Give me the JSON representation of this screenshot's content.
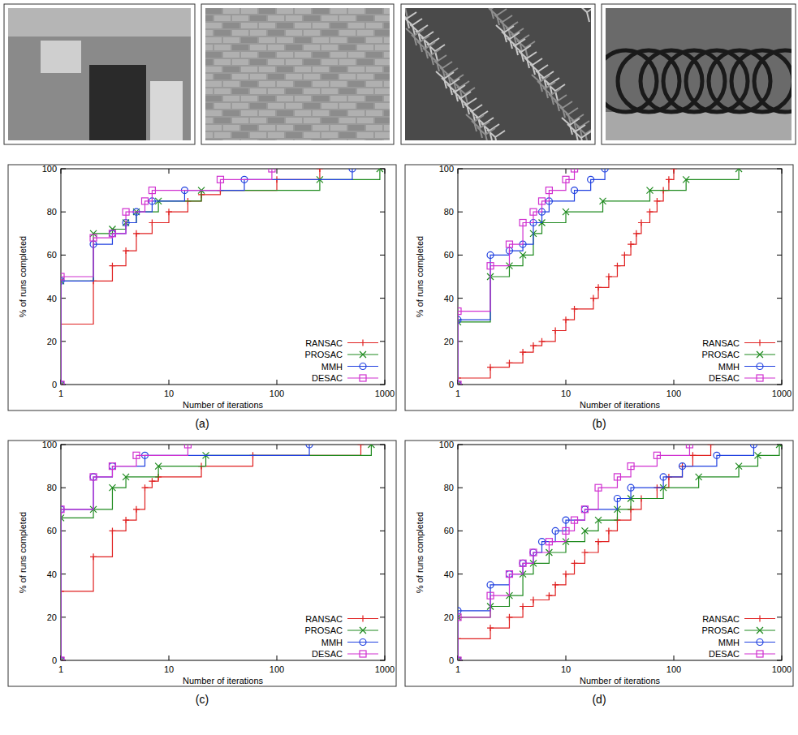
{
  "chart_data": [
    {
      "type": "line",
      "caption": "(a)",
      "xlabel": "Number of iterations",
      "ylabel": "% of runs completed",
      "log": "x",
      "xlim": [
        1,
        1000
      ],
      "xticks": [
        1,
        10,
        100,
        1000
      ],
      "ylim": [
        0,
        100
      ],
      "yticks": [
        0,
        20,
        40,
        60,
        80,
        100
      ],
      "legend": "lower right",
      "series": [
        {
          "name": "RANSAC",
          "color": "#e02020",
          "marker": "plus",
          "line_style": "step",
          "x": [
            1,
            1,
            2,
            3,
            4,
            5,
            7,
            10,
            15,
            20,
            30,
            100,
            250
          ],
          "values": [
            0,
            28,
            48,
            55,
            62,
            70,
            75,
            80,
            85,
            88,
            90,
            95,
            100
          ]
        },
        {
          "name": "PROSAC",
          "color": "#1e8a1e",
          "marker": "cross",
          "line_style": "step",
          "x": [
            1,
            1,
            2,
            3,
            4,
            5,
            8,
            20,
            250,
            900
          ],
          "values": [
            0,
            48,
            70,
            72,
            75,
            80,
            85,
            90,
            95,
            100
          ]
        },
        {
          "name": "MMH",
          "color": "#2040e0",
          "marker": "circle",
          "line_style": "step",
          "x": [
            1,
            1,
            2,
            3,
            4,
            5,
            7,
            14,
            50,
            500
          ],
          "values": [
            0,
            48,
            65,
            70,
            75,
            80,
            85,
            90,
            95,
            100
          ]
        },
        {
          "name": "DESAC",
          "color": "#d030d0",
          "marker": "square",
          "line_style": "step",
          "x": [
            1,
            1,
            2,
            3,
            4,
            6,
            7,
            30,
            90
          ],
          "values": [
            0,
            50,
            68,
            70,
            80,
            85,
            90,
            95,
            100
          ]
        }
      ]
    },
    {
      "type": "line",
      "caption": "(b)",
      "xlabel": "Number of iterations",
      "ylabel": "% of runs completed",
      "log": "x",
      "xlim": [
        1,
        1000
      ],
      "xticks": [
        1,
        10,
        100,
        1000
      ],
      "ylim": [
        0,
        100
      ],
      "yticks": [
        0,
        20,
        40,
        60,
        80,
        100
      ],
      "legend": "lower right",
      "series": [
        {
          "name": "RANSAC",
          "color": "#e02020",
          "marker": "plus",
          "line_style": "step",
          "x": [
            1,
            1,
            2,
            3,
            4,
            5,
            6,
            8,
            10,
            12,
            18,
            20,
            25,
            30,
            35,
            40,
            45,
            50,
            60,
            70,
            80,
            90,
            100
          ],
          "values": [
            0,
            3,
            8,
            10,
            15,
            18,
            20,
            25,
            30,
            35,
            40,
            45,
            50,
            55,
            60,
            65,
            70,
            75,
            80,
            85,
            90,
            95,
            100
          ]
        },
        {
          "name": "PROSAC",
          "color": "#1e8a1e",
          "marker": "cross",
          "line_style": "step",
          "x": [
            1,
            1,
            2,
            3,
            4,
            5,
            6,
            10,
            22,
            60,
            130,
            400
          ],
          "values": [
            0,
            29,
            50,
            55,
            60,
            70,
            75,
            80,
            85,
            90,
            95,
            100
          ]
        },
        {
          "name": "MMH",
          "color": "#2040e0",
          "marker": "circle",
          "line_style": "step",
          "x": [
            1,
            1,
            2,
            3,
            4,
            5,
            6,
            7,
            12,
            17,
            23
          ],
          "values": [
            0,
            30,
            60,
            62,
            65,
            75,
            80,
            85,
            90,
            95,
            100
          ]
        },
        {
          "name": "DESAC",
          "color": "#d030d0",
          "marker": "square",
          "line_style": "step",
          "x": [
            1,
            1,
            2,
            3,
            4,
            5,
            6,
            7,
            10,
            12
          ],
          "values": [
            0,
            34,
            55,
            65,
            75,
            80,
            85,
            90,
            95,
            100
          ]
        }
      ]
    },
    {
      "type": "line",
      "caption": "(c)",
      "xlabel": "Number of iterations",
      "ylabel": "% of runs completed",
      "log": "x",
      "xlim": [
        1,
        1000
      ],
      "xticks": [
        1,
        10,
        100,
        1000
      ],
      "ylim": [
        0,
        100
      ],
      "yticks": [
        0,
        20,
        40,
        60,
        80,
        100
      ],
      "legend": "lower right",
      "series": [
        {
          "name": "RANSAC",
          "color": "#e02020",
          "marker": "plus",
          "line_style": "step",
          "x": [
            1,
            1,
            2,
            3,
            4,
            5,
            6,
            7,
            8,
            20,
            60,
            600
          ],
          "values": [
            0,
            32,
            48,
            60,
            65,
            70,
            80,
            83,
            85,
            90,
            95,
            100
          ]
        },
        {
          "name": "PROSAC",
          "color": "#1e8a1e",
          "marker": "cross",
          "line_style": "step",
          "x": [
            1,
            1,
            2,
            3,
            4,
            8,
            22,
            750
          ],
          "values": [
            0,
            66,
            70,
            80,
            85,
            90,
            95,
            100
          ]
        },
        {
          "name": "MMH",
          "color": "#2040e0",
          "marker": "circle",
          "line_style": "step",
          "x": [
            1,
            1,
            2,
            3,
            6,
            200
          ],
          "values": [
            0,
            70,
            85,
            90,
            95,
            100
          ]
        },
        {
          "name": "DESAC",
          "color": "#d030d0",
          "marker": "square",
          "line_style": "step",
          "x": [
            1,
            1,
            2,
            3,
            5,
            15
          ],
          "values": [
            0,
            70,
            85,
            90,
            95,
            100
          ]
        }
      ]
    },
    {
      "type": "line",
      "caption": "(d)",
      "xlabel": "Number of iterations",
      "ylabel": "% of runs completed",
      "log": "x",
      "xlim": [
        1,
        1000
      ],
      "xticks": [
        1,
        10,
        100,
        1000
      ],
      "ylim": [
        0,
        100
      ],
      "yticks": [
        0,
        20,
        40,
        60,
        80,
        100
      ],
      "legend": "lower right",
      "series": [
        {
          "name": "RANSAC",
          "color": "#e02020",
          "marker": "plus",
          "line_style": "step",
          "x": [
            1,
            1,
            2,
            3,
            4,
            5,
            7,
            8,
            10,
            12,
            15,
            20,
            25,
            30,
            40,
            50,
            70,
            90,
            120,
            150,
            220
          ],
          "values": [
            0,
            10,
            15,
            20,
            25,
            28,
            30,
            35,
            40,
            45,
            50,
            55,
            60,
            65,
            70,
            75,
            80,
            85,
            90,
            95,
            100
          ]
        },
        {
          "name": "PROSAC",
          "color": "#1e8a1e",
          "marker": "cross",
          "line_style": "step",
          "x": [
            1,
            1,
            2,
            3,
            4,
            5,
            7,
            10,
            15,
            20,
            30,
            40,
            80,
            170,
            400,
            600,
            950
          ],
          "values": [
            0,
            20,
            25,
            30,
            40,
            45,
            50,
            55,
            60,
            65,
            70,
            75,
            80,
            85,
            90,
            95,
            100
          ]
        },
        {
          "name": "MMH",
          "color": "#2040e0",
          "marker": "circle",
          "line_style": "step",
          "x": [
            1,
            1,
            2,
            3,
            4,
            5,
            6,
            8,
            10,
            15,
            30,
            40,
            80,
            120,
            250,
            550
          ],
          "values": [
            0,
            23,
            35,
            40,
            45,
            50,
            55,
            60,
            65,
            70,
            75,
            80,
            85,
            90,
            95,
            100
          ]
        },
        {
          "name": "DESAC",
          "color": "#d030d0",
          "marker": "square",
          "line_style": "step",
          "x": [
            1,
            1,
            2,
            3,
            4,
            5,
            7,
            10,
            12,
            15,
            20,
            30,
            40,
            70,
            140
          ],
          "values": [
            0,
            20,
            30,
            40,
            45,
            50,
            55,
            60,
            65,
            70,
            80,
            85,
            90,
            95,
            100
          ]
        }
      ]
    }
  ]
}
